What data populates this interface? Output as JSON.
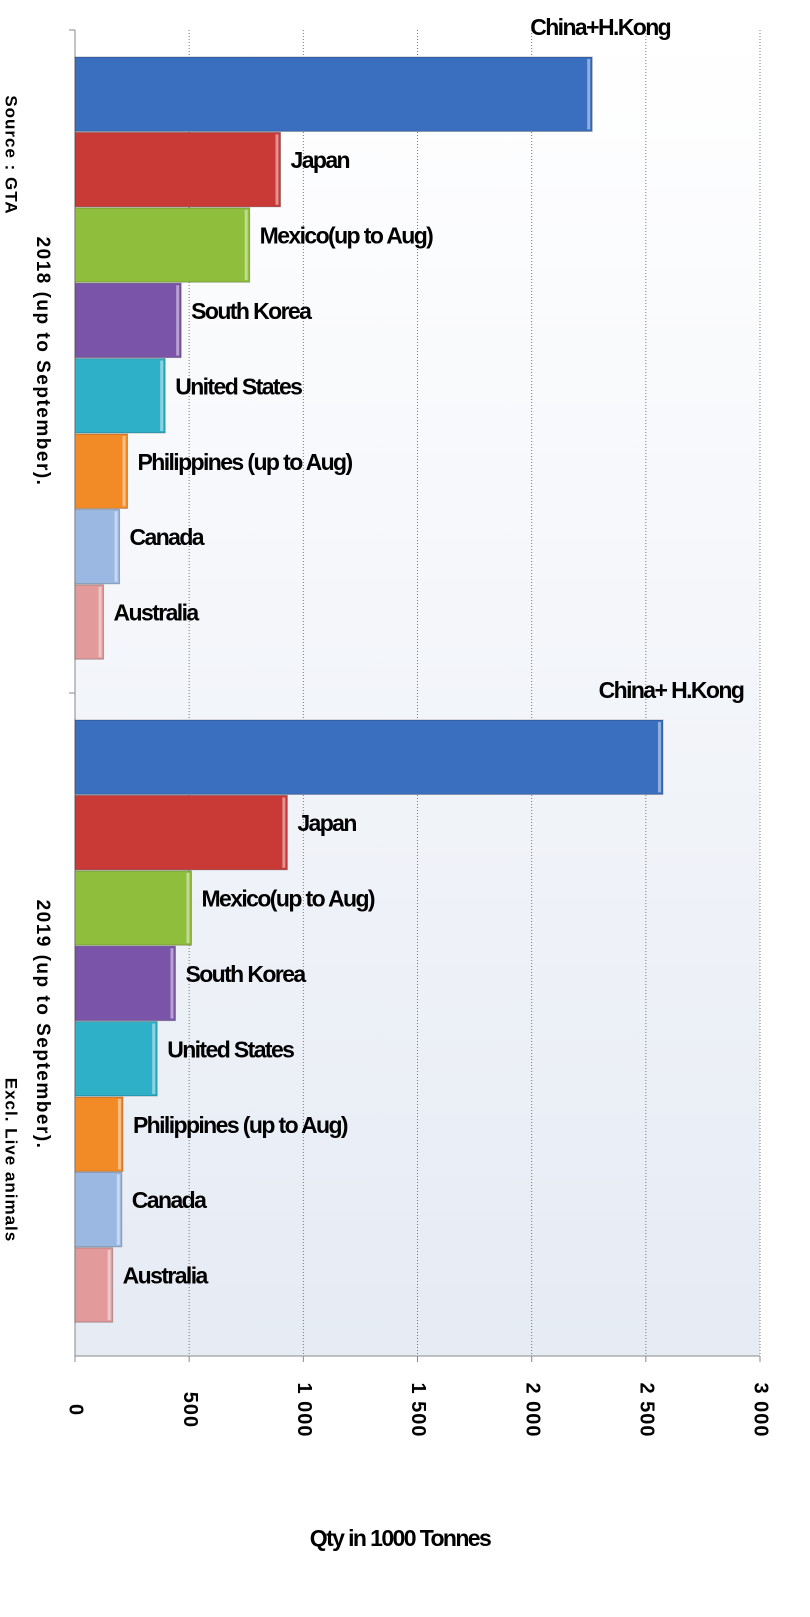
{
  "chart_data": {
    "type": "bar",
    "orientation": "horizontal",
    "xlabel": "Qty in 1000 Tonnes",
    "notes": [
      "Source : GTA",
      "Excl. Live animals"
    ],
    "colors": [
      "#3a6fc0",
      "#c93a37",
      "#8fbd3c",
      "#7a54a8",
      "#2fb0c9",
      "#f28a26",
      "#9bb8e3",
      "#e29a9a"
    ],
    "groups": [
      {
        "name": "2018 (up to September).",
        "categories": [
          "China+H.Kong",
          "Japan",
          "Mexico(up to Aug)",
          "South Korea",
          "United States",
          "Philippines (up to Aug)",
          "Canada",
          "Australia"
        ],
        "values": [
          2265,
          900,
          765,
          465,
          395,
          230,
          195,
          125
        ]
      },
      {
        "name": "2019 (up to September).",
        "categories": [
          "China+ H.Kong",
          "Japan",
          "Mexico(up to Aug)",
          "South Korea",
          "United States",
          "Philippines (up to Aug)",
          "Canada",
          "Australia"
        ],
        "values": [
          2575,
          930,
          510,
          440,
          360,
          210,
          205,
          165
        ]
      }
    ],
    "xlim": [
      0,
      3000
    ],
    "xticks": [
      0,
      500,
      {
        "value": 1000,
        "label": "1 000"
      },
      {
        "value": 1500,
        "label": "1 500"
      },
      {
        "value": 2000,
        "label": "2 000"
      },
      {
        "value": 2500,
        "label": "2 500"
      },
      {
        "value": 3000,
        "label": "3 000"
      }
    ],
    "grid": true
  }
}
